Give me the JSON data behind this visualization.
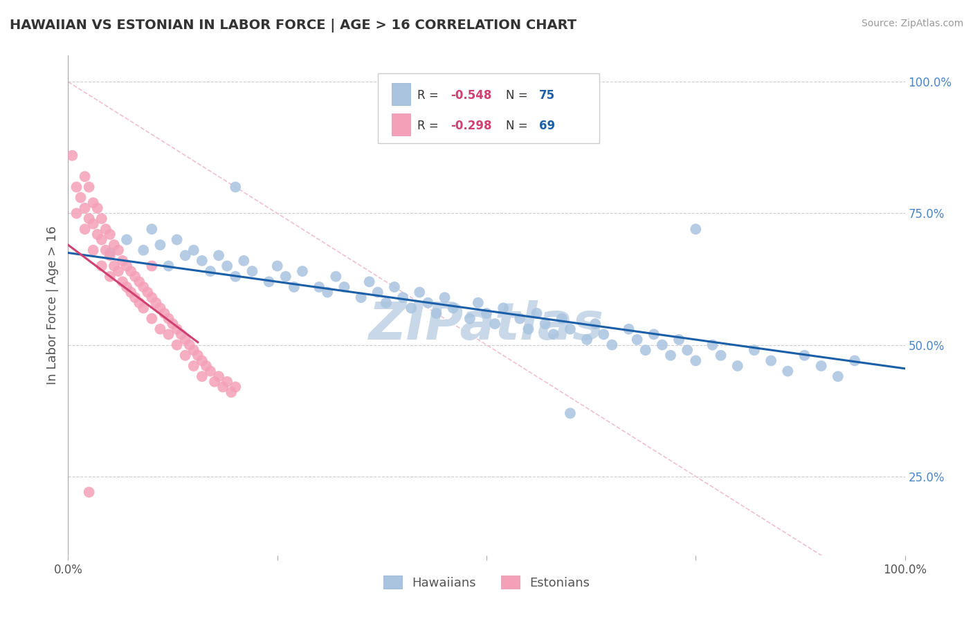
{
  "title": "HAWAIIAN VS ESTONIAN IN LABOR FORCE | AGE > 16 CORRELATION CHART",
  "source_text": "Source: ZipAtlas.com",
  "ylabel": "In Labor Force | Age > 16",
  "xlim": [
    0.0,
    1.0
  ],
  "ylim": [
    0.1,
    1.05
  ],
  "grid_color": "#cccccc",
  "background_color": "#ffffff",
  "watermark": "ZIPatlas",
  "watermark_color": "#c8d8e8",
  "blue_color": "#aac4e0",
  "pink_color": "#f4a0b8",
  "line_blue": "#1a5fa8",
  "line_pink": "#d04070",
  "diag_color": "#f0c0d0",
  "r_color": "#d04070",
  "n_color": "#1a5fa8",
  "right_tick_color": "#4a86c8",
  "blue_x": [
    0.05,
    0.07,
    0.09,
    0.1,
    0.11,
    0.12,
    0.13,
    0.14,
    0.15,
    0.16,
    0.17,
    0.18,
    0.19,
    0.2,
    0.21,
    0.22,
    0.24,
    0.25,
    0.26,
    0.27,
    0.28,
    0.3,
    0.31,
    0.32,
    0.33,
    0.35,
    0.36,
    0.37,
    0.38,
    0.39,
    0.4,
    0.41,
    0.42,
    0.43,
    0.44,
    0.45,
    0.46,
    0.48,
    0.49,
    0.5,
    0.51,
    0.52,
    0.54,
    0.55,
    0.56,
    0.57,
    0.58,
    0.59,
    0.6,
    0.62,
    0.63,
    0.64,
    0.65,
    0.67,
    0.68,
    0.69,
    0.7,
    0.71,
    0.72,
    0.73,
    0.74,
    0.75,
    0.77,
    0.78,
    0.8,
    0.82,
    0.84,
    0.86,
    0.88,
    0.9,
    0.92,
    0.94,
    0.2,
    0.6,
    0.75
  ],
  "blue_y": [
    0.675,
    0.7,
    0.68,
    0.72,
    0.69,
    0.65,
    0.7,
    0.67,
    0.68,
    0.66,
    0.64,
    0.67,
    0.65,
    0.63,
    0.66,
    0.64,
    0.62,
    0.65,
    0.63,
    0.61,
    0.64,
    0.61,
    0.6,
    0.63,
    0.61,
    0.59,
    0.62,
    0.6,
    0.58,
    0.61,
    0.59,
    0.57,
    0.6,
    0.58,
    0.56,
    0.59,
    0.57,
    0.55,
    0.58,
    0.56,
    0.54,
    0.57,
    0.55,
    0.53,
    0.56,
    0.54,
    0.52,
    0.55,
    0.53,
    0.51,
    0.54,
    0.52,
    0.5,
    0.53,
    0.51,
    0.49,
    0.52,
    0.5,
    0.48,
    0.51,
    0.49,
    0.47,
    0.5,
    0.48,
    0.46,
    0.49,
    0.47,
    0.45,
    0.48,
    0.46,
    0.44,
    0.47,
    0.8,
    0.37,
    0.72
  ],
  "pink_x": [
    0.005,
    0.01,
    0.01,
    0.015,
    0.02,
    0.02,
    0.02,
    0.025,
    0.025,
    0.03,
    0.03,
    0.03,
    0.035,
    0.035,
    0.04,
    0.04,
    0.04,
    0.045,
    0.045,
    0.05,
    0.05,
    0.05,
    0.055,
    0.055,
    0.06,
    0.06,
    0.065,
    0.065,
    0.07,
    0.07,
    0.075,
    0.075,
    0.08,
    0.08,
    0.085,
    0.085,
    0.09,
    0.09,
    0.095,
    0.1,
    0.1,
    0.1,
    0.105,
    0.11,
    0.11,
    0.115,
    0.12,
    0.12,
    0.125,
    0.13,
    0.13,
    0.135,
    0.14,
    0.14,
    0.145,
    0.15,
    0.15,
    0.155,
    0.16,
    0.16,
    0.165,
    0.17,
    0.175,
    0.18,
    0.185,
    0.19,
    0.195,
    0.2,
    0.025
  ],
  "pink_y": [
    0.86,
    0.8,
    0.75,
    0.78,
    0.82,
    0.76,
    0.72,
    0.8,
    0.74,
    0.77,
    0.73,
    0.68,
    0.76,
    0.71,
    0.74,
    0.7,
    0.65,
    0.72,
    0.68,
    0.71,
    0.67,
    0.63,
    0.69,
    0.65,
    0.68,
    0.64,
    0.66,
    0.62,
    0.65,
    0.61,
    0.64,
    0.6,
    0.63,
    0.59,
    0.62,
    0.58,
    0.61,
    0.57,
    0.6,
    0.65,
    0.59,
    0.55,
    0.58,
    0.57,
    0.53,
    0.56,
    0.55,
    0.52,
    0.54,
    0.53,
    0.5,
    0.52,
    0.51,
    0.48,
    0.5,
    0.49,
    0.46,
    0.48,
    0.47,
    0.44,
    0.46,
    0.45,
    0.43,
    0.44,
    0.42,
    0.43,
    0.41,
    0.42,
    0.22
  ],
  "blue_line_x": [
    0.0,
    1.0
  ],
  "blue_line_y": [
    0.675,
    0.455
  ],
  "pink_line_x": [
    0.0,
    0.155
  ],
  "pink_line_y": [
    0.69,
    0.505
  ]
}
